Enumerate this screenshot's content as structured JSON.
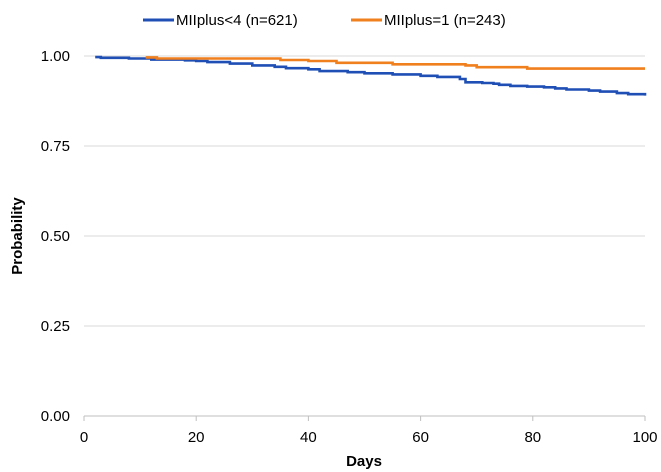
{
  "chart_data": {
    "type": "line",
    "title": "",
    "xlabel": "Days",
    "ylabel": "Probability",
    "xlim": [
      0,
      100
    ],
    "ylim": [
      0,
      1
    ],
    "x_ticks": [
      "0",
      "20",
      "40",
      "60",
      "80",
      "100"
    ],
    "y_ticks": [
      "0.00",
      "0.25",
      "0.50",
      "0.75",
      "1.00"
    ],
    "grid": "horizontal",
    "legend_position": "top",
    "series": [
      {
        "name": "MIIplus<4 (n=621)",
        "color": "#1f4fb5",
        "points": [
          [
            2,
            0.997
          ],
          [
            3,
            0.995
          ],
          [
            8,
            0.993
          ],
          [
            12,
            0.99
          ],
          [
            18,
            0.988
          ],
          [
            20,
            0.986
          ],
          [
            22,
            0.983
          ],
          [
            26,
            0.979
          ],
          [
            30,
            0.974
          ],
          [
            34,
            0.97
          ],
          [
            36,
            0.966
          ],
          [
            40,
            0.963
          ],
          [
            42,
            0.958
          ],
          [
            47,
            0.955
          ],
          [
            50,
            0.952
          ],
          [
            55,
            0.949
          ],
          [
            60,
            0.945
          ],
          [
            63,
            0.942
          ],
          [
            67,
            0.936
          ],
          [
            68,
            0.927
          ],
          [
            71,
            0.925
          ],
          [
            73,
            0.923
          ],
          [
            74,
            0.92
          ],
          [
            76,
            0.917
          ],
          [
            79,
            0.915
          ],
          [
            82,
            0.913
          ],
          [
            84,
            0.91
          ],
          [
            86,
            0.907
          ],
          [
            90,
            0.904
          ],
          [
            92,
            0.901
          ],
          [
            95,
            0.897
          ],
          [
            97,
            0.894
          ],
          [
            100,
            0.89
          ]
        ]
      },
      {
        "name": "MIIplus=1 (n=243)",
        "color": "#f07f1e",
        "points": [
          [
            11,
            0.996
          ],
          [
            13,
            0.993
          ],
          [
            34,
            0.993
          ],
          [
            35,
            0.989
          ],
          [
            40,
            0.986
          ],
          [
            45,
            0.981
          ],
          [
            55,
            0.977
          ],
          [
            68,
            0.974
          ],
          [
            70,
            0.969
          ],
          [
            77,
            0.969
          ],
          [
            79,
            0.965
          ],
          [
            100,
            0.965
          ]
        ]
      }
    ]
  }
}
